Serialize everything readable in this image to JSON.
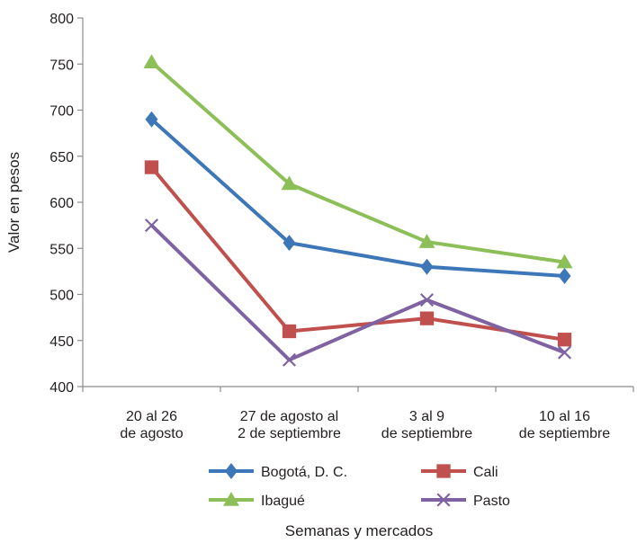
{
  "chart_data": {
    "type": "line",
    "title": "",
    "xlabel": "Semanas y mercados",
    "ylabel": "Valor en pesos",
    "ylim": [
      400,
      800
    ],
    "yticks": [
      400,
      450,
      500,
      550,
      600,
      650,
      700,
      750,
      800
    ],
    "grid": false,
    "legend_position": "bottom",
    "categories": [
      [
        "20 al 26",
        "de agosto"
      ],
      [
        "27 de agosto al",
        "2 de septiembre"
      ],
      [
        "3 al 9",
        "de septiembre"
      ],
      [
        "10 al 16",
        "de septiembre"
      ]
    ],
    "series": [
      {
        "name": "Bogotá, D. C.",
        "color": "#3e77b8",
        "marker": "diamond",
        "values": [
          690,
          556,
          530,
          520
        ]
      },
      {
        "name": "Cali",
        "color": "#c0504d",
        "marker": "square",
        "values": [
          638,
          460,
          474,
          451
        ]
      },
      {
        "name": "Ibagué",
        "color": "#8cbf58",
        "marker": "triangle",
        "values": [
          752,
          620,
          557,
          535
        ]
      },
      {
        "name": "Pasto",
        "color": "#7e62a1",
        "marker": "x",
        "values": [
          575,
          429,
          494,
          437
        ]
      }
    ]
  }
}
